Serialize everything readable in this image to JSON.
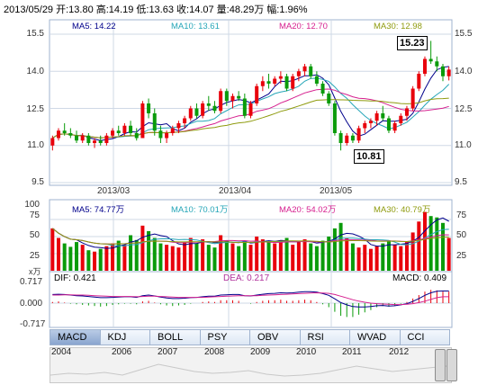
{
  "header": {
    "text": "2013/05/29 开:13.80 高:14.19 低:13.63 收:14.07 量:48.29万 幅:1.96%"
  },
  "price_panel": {
    "ma_labels": [
      {
        "text": "MA5: 14.22",
        "color": "#00008b"
      },
      {
        "text": "MA10: 13.61",
        "color": "#26a6b8"
      },
      {
        "text": "MA20: 12.70",
        "color": "#d6208f"
      },
      {
        "text": "MA30: 12.98",
        "color": "#8f9b0e"
      }
    ],
    "y_ticks": [
      "15.5",
      "14.0",
      "12.5",
      "11.0",
      "9.5"
    ],
    "y_ticks_left": [
      "15.5",
      "14.0",
      "12.5",
      "11.0",
      "9.5"
    ],
    "x_ticks": [
      "2013/03",
      "2013/04",
      "2013/05"
    ],
    "high_callout": "15.23",
    "low_callout": "10.81"
  },
  "volume_panel": {
    "ma_labels": [
      {
        "text": "MA5: 74.77万",
        "color": "#00008b"
      },
      {
        "text": "MA10: 70.01万",
        "color": "#26a6b8"
      },
      {
        "text": "MA20: 54.02万",
        "color": "#d6208f"
      },
      {
        "text": "MA30: 40.79万",
        "color": "#8f9b0e"
      }
    ],
    "y_ticks": [
      "75",
      "50",
      "25"
    ],
    "y_ticks_left": [
      "100",
      "75",
      "50",
      "25"
    ],
    "unit": "x万"
  },
  "macd_panel": {
    "dif_label": "DIF: 0.421",
    "dea_label": "DEA: 0.217",
    "macd_label": "MACD: 0.409",
    "y_ticks": [
      "0.717",
      "0.000",
      "-0.717"
    ]
  },
  "tabs": [
    "MACD",
    "KDJ",
    "BOLL",
    "PSY",
    "OBV",
    "RSI",
    "WVAD",
    "CCI"
  ],
  "navigator_years": [
    "2004",
    "2006",
    "2007",
    "2008",
    "2009",
    "2010",
    "2011",
    "2012"
  ],
  "colors": {
    "up": "#e8000b",
    "down": "#0a9b0a",
    "grid": "#cfd8e6"
  },
  "chart_data": {
    "type": "candlestick",
    "title": "",
    "x_ticks": [
      "2013/03",
      "2013/04",
      "2013/05"
    ],
    "ylim": [
      9.5,
      15.5
    ],
    "ohlc": [
      [
        11.0,
        11.4,
        10.8,
        11.3
      ],
      [
        11.3,
        11.7,
        11.2,
        11.6
      ],
      [
        11.6,
        11.9,
        11.4,
        11.5
      ],
      [
        11.5,
        11.7,
        11.3,
        11.4
      ],
      [
        11.4,
        11.6,
        11.1,
        11.2
      ],
      [
        11.2,
        11.5,
        11.1,
        11.4
      ],
      [
        11.4,
        11.5,
        11.0,
        11.1
      ],
      [
        11.1,
        11.3,
        10.9,
        11.2
      ],
      [
        11.2,
        11.4,
        11.0,
        11.1
      ],
      [
        11.1,
        11.5,
        11.0,
        11.4
      ],
      [
        11.4,
        11.7,
        11.3,
        11.6
      ],
      [
        11.6,
        11.8,
        11.4,
        11.5
      ],
      [
        11.5,
        11.9,
        11.4,
        11.8
      ],
      [
        11.8,
        12.0,
        11.4,
        11.5
      ],
      [
        11.5,
        11.7,
        11.2,
        11.3
      ],
      [
        11.3,
        12.8,
        11.3,
        12.7
      ],
      [
        12.7,
        12.9,
        12.1,
        12.3
      ],
      [
        12.3,
        12.5,
        11.4,
        11.6
      ],
      [
        11.6,
        11.8,
        11.1,
        11.3
      ],
      [
        11.3,
        11.6,
        11.1,
        11.5
      ],
      [
        11.5,
        11.8,
        11.4,
        11.7
      ],
      [
        11.7,
        12.0,
        11.5,
        11.9
      ],
      [
        11.9,
        12.2,
        11.7,
        12.1
      ],
      [
        12.1,
        12.6,
        12.0,
        12.5
      ],
      [
        12.5,
        12.7,
        12.1,
        12.2
      ],
      [
        12.2,
        12.8,
        12.1,
        12.7
      ],
      [
        12.7,
        13.0,
        12.4,
        12.6
      ],
      [
        12.6,
        12.8,
        12.3,
        12.4
      ],
      [
        12.4,
        13.3,
        12.3,
        13.2
      ],
      [
        13.2,
        13.3,
        12.6,
        12.8
      ],
      [
        12.8,
        13.1,
        12.5,
        13.0
      ],
      [
        13.0,
        13.2,
        12.8,
        12.9
      ],
      [
        12.9,
        13.1,
        12.1,
        12.2
      ],
      [
        12.2,
        12.8,
        12.1,
        12.7
      ],
      [
        12.7,
        13.5,
        12.6,
        13.4
      ],
      [
        13.4,
        13.8,
        13.2,
        13.6
      ],
      [
        13.6,
        13.9,
        13.3,
        13.5
      ],
      [
        13.5,
        13.8,
        13.4,
        13.7
      ],
      [
        13.7,
        14.0,
        13.5,
        13.8
      ],
      [
        13.8,
        13.9,
        13.2,
        13.3
      ],
      [
        13.3,
        13.9,
        13.2,
        13.8
      ],
      [
        13.8,
        14.1,
        13.6,
        14.0
      ],
      [
        14.0,
        14.3,
        13.8,
        14.2
      ],
      [
        14.2,
        14.3,
        13.7,
        13.8
      ],
      [
        13.8,
        14.0,
        13.4,
        13.5
      ],
      [
        13.5,
        13.6,
        13.0,
        13.1
      ],
      [
        13.1,
        13.2,
        12.6,
        12.7
      ],
      [
        12.7,
        12.8,
        11.4,
        11.5
      ],
      [
        11.5,
        11.6,
        10.8,
        11.1
      ],
      [
        11.1,
        11.5,
        11.0,
        11.4
      ],
      [
        11.4,
        11.5,
        11.1,
        11.2
      ],
      [
        11.2,
        11.8,
        11.1,
        11.7
      ],
      [
        11.7,
        12.0,
        11.5,
        11.9
      ],
      [
        11.9,
        12.1,
        11.7,
        12.0
      ],
      [
        12.0,
        12.4,
        11.8,
        12.3
      ],
      [
        12.3,
        12.6,
        12.0,
        12.1
      ],
      [
        12.1,
        12.2,
        11.5,
        11.6
      ],
      [
        11.6,
        12.0,
        11.5,
        11.9
      ],
      [
        11.9,
        12.3,
        11.8,
        12.2
      ],
      [
        12.2,
        12.6,
        12.0,
        12.5
      ],
      [
        12.5,
        13.4,
        12.4,
        13.3
      ],
      [
        13.3,
        14.0,
        13.2,
        13.9
      ],
      [
        13.9,
        14.6,
        13.8,
        14.5
      ],
      [
        14.5,
        15.23,
        14.3,
        14.4
      ],
      [
        14.4,
        14.6,
        14.0,
        14.2
      ],
      [
        14.2,
        14.3,
        13.6,
        13.8
      ],
      [
        13.8,
        14.19,
        13.63,
        14.07
      ]
    ],
    "volume": [
      62,
      48,
      40,
      35,
      42,
      38,
      30,
      28,
      32,
      36,
      40,
      44,
      38,
      52,
      45,
      66,
      58,
      48,
      40,
      38,
      36,
      34,
      42,
      48,
      40,
      46,
      38,
      34,
      52,
      44,
      40,
      36,
      44,
      38,
      50,
      46,
      42,
      40,
      44,
      48,
      38,
      42,
      46,
      40,
      36,
      44,
      50,
      62,
      70,
      48,
      40,
      34,
      38,
      32,
      36,
      40,
      44,
      38,
      36,
      42,
      56,
      72,
      86,
      80,
      78,
      70,
      48
    ],
    "dif": [
      0.3,
      0.31,
      0.3,
      0.28,
      0.26,
      0.25,
      0.23,
      0.21,
      0.19,
      0.19,
      0.2,
      0.21,
      0.22,
      0.22,
      0.2,
      0.26,
      0.28,
      0.25,
      0.21,
      0.18,
      0.16,
      0.16,
      0.17,
      0.19,
      0.2,
      0.22,
      0.24,
      0.24,
      0.28,
      0.29,
      0.3,
      0.3,
      0.26,
      0.25,
      0.28,
      0.31,
      0.33,
      0.34,
      0.36,
      0.35,
      0.36,
      0.38,
      0.4,
      0.4,
      0.38,
      0.33,
      0.27,
      0.15,
      0.02,
      -0.06,
      -0.12,
      -0.13,
      -0.13,
      -0.12,
      -0.09,
      -0.08,
      -0.1,
      -0.09,
      -0.06,
      -0.02,
      0.06,
      0.16,
      0.27,
      0.36,
      0.41,
      0.42,
      0.42
    ],
    "dea": [
      0.28,
      0.28,
      0.29,
      0.29,
      0.28,
      0.28,
      0.27,
      0.26,
      0.25,
      0.24,
      0.23,
      0.23,
      0.23,
      0.23,
      0.22,
      0.23,
      0.24,
      0.24,
      0.23,
      0.22,
      0.21,
      0.2,
      0.2,
      0.2,
      0.2,
      0.2,
      0.21,
      0.22,
      0.23,
      0.24,
      0.25,
      0.26,
      0.26,
      0.26,
      0.26,
      0.27,
      0.28,
      0.29,
      0.3,
      0.31,
      0.32,
      0.33,
      0.34,
      0.35,
      0.36,
      0.35,
      0.34,
      0.3,
      0.24,
      0.18,
      0.12,
      0.07,
      0.03,
      0.0,
      -0.02,
      -0.03,
      -0.04,
      -0.05,
      -0.05,
      -0.04,
      -0.02,
      0.02,
      0.07,
      0.13,
      0.19,
      0.22,
      0.22
    ]
  }
}
